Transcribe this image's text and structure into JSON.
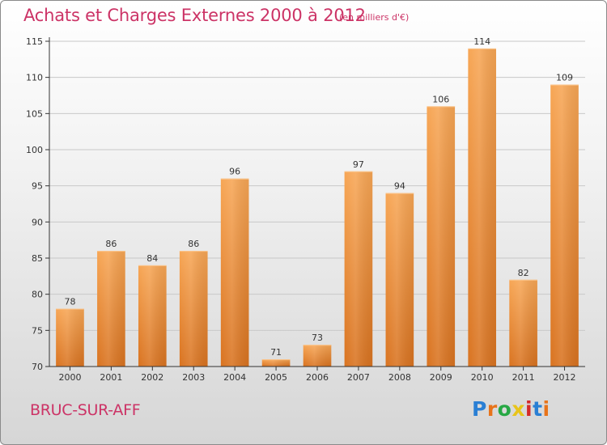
{
  "header": {
    "title": "Achats et Charges Externes 2000 à 2012",
    "unit": "(en milliers d'€)"
  },
  "footer": {
    "commune": "BRUC-SUR-AFF",
    "logo_text": "Proxiti",
    "logo_colors": [
      "#2a7fd4",
      "#e8731a",
      "#27a844",
      "#e8c41a",
      "#d42a2a",
      "#2a7fd4",
      "#e8731a"
    ]
  },
  "colors": {
    "bar_light": "#f7a655",
    "bar_dark": "#d97320",
    "title": "#cc3366",
    "axis": "#333333",
    "grid": "#c8c8c8"
  },
  "chart_data": {
    "type": "bar",
    "title": "Achats et Charges Externes 2000 à 2012",
    "subtitle": "(en milliers d'€)",
    "xlabel": "",
    "ylabel": "",
    "categories": [
      "2000",
      "2001",
      "2002",
      "2003",
      "2004",
      "2005",
      "2006",
      "2007",
      "2008",
      "2009",
      "2010",
      "2011",
      "2012"
    ],
    "values": [
      78,
      86,
      84,
      86,
      96,
      71,
      73,
      97,
      94,
      106,
      114,
      82,
      109
    ],
    "ylim": [
      70,
      115
    ],
    "yticks": [
      70,
      75,
      80,
      85,
      90,
      95,
      100,
      105,
      110,
      115
    ],
    "grid": true,
    "data_labels": true
  }
}
